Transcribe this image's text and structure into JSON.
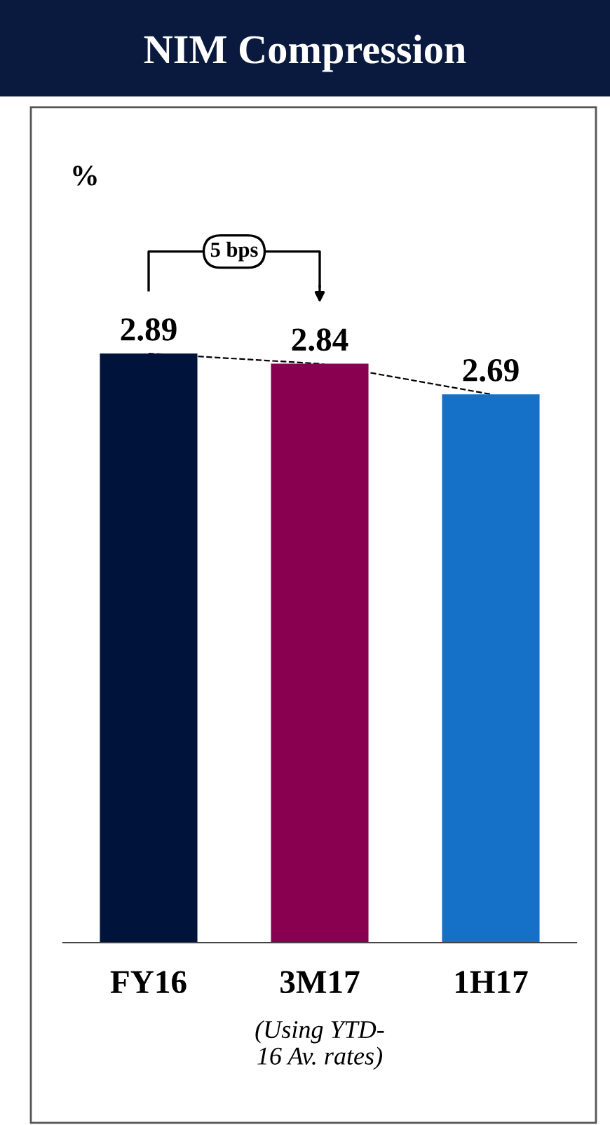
{
  "chart_data": {
    "type": "bar",
    "title": "NIM Compression",
    "categories": [
      "FY16",
      "3M17",
      "1H17"
    ],
    "series": [
      {
        "colors": [
          "#00133a",
          "#8a0050",
          "#1570c8"
        ],
        "values": [
          2.89,
          2.84,
          2.69
        ],
        "value_labels": [
          "2.89",
          "2.84",
          "2.69"
        ]
      },
      {
        "type": "line",
        "color": "#000000",
        "line_style": "dashed",
        "values": [
          2.89,
          2.84,
          2.69
        ]
      }
    ],
    "tick_labels": "x",
    "grid": false,
    "legend": false,
    "annotations": [
      "%",
      "5 bps",
      "(Using YTD-\n16 Av. rates)"
    ]
  }
}
